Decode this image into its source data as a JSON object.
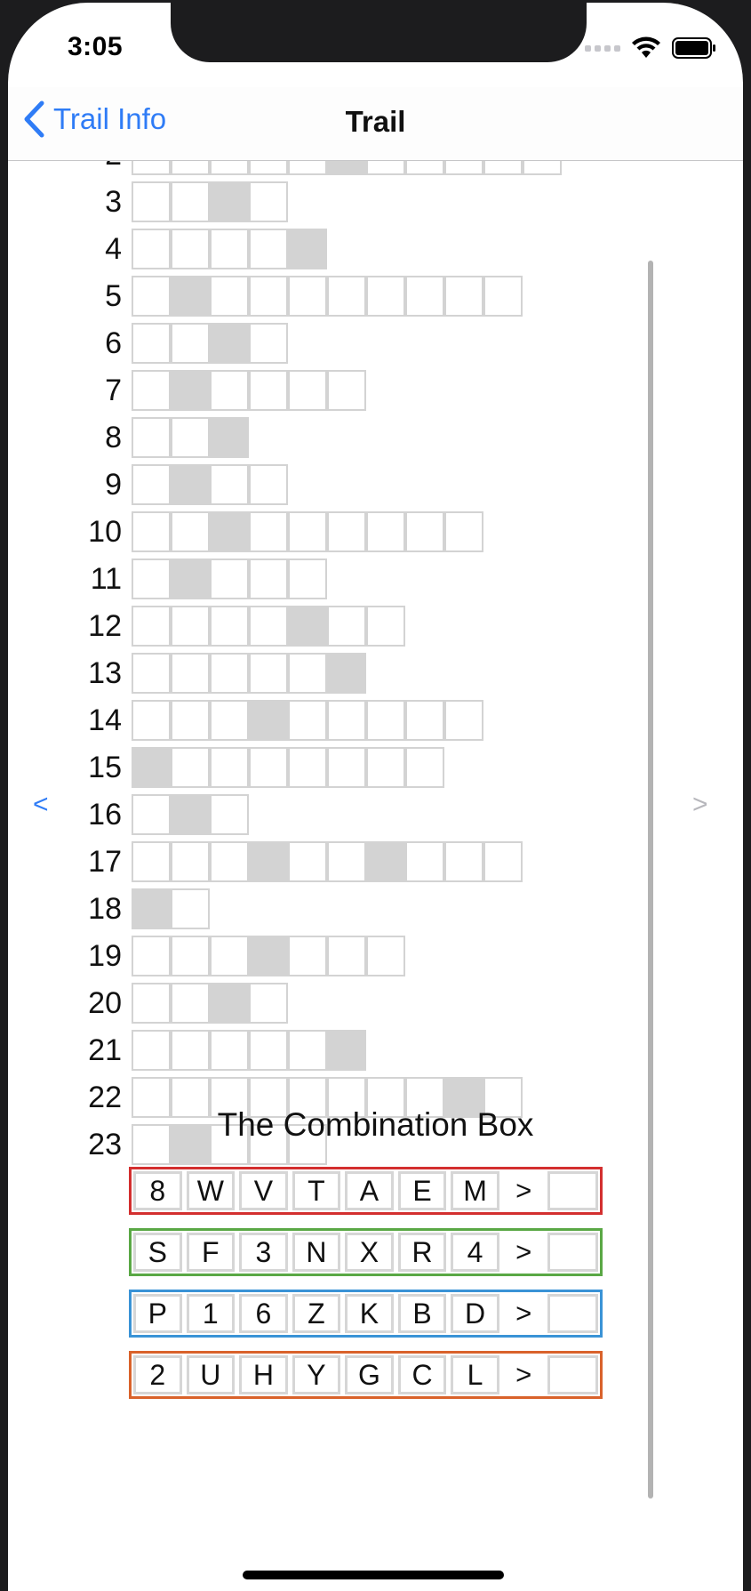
{
  "status": {
    "time": "3:05"
  },
  "nav": {
    "back_label": "Trail Info",
    "title": "Trail"
  },
  "arrows": {
    "left": "<",
    "right": ">"
  },
  "rows": [
    {
      "number": "2",
      "cells": 11,
      "filled": [
        5
      ]
    },
    {
      "number": "3",
      "cells": 4,
      "filled": [
        2
      ]
    },
    {
      "number": "4",
      "cells": 5,
      "filled": [
        4
      ]
    },
    {
      "number": "5",
      "cells": 10,
      "filled": [
        1
      ]
    },
    {
      "number": "6",
      "cells": 4,
      "filled": [
        2
      ]
    },
    {
      "number": "7",
      "cells": 6,
      "filled": [
        1
      ]
    },
    {
      "number": "8",
      "cells": 3,
      "filled": [
        2
      ]
    },
    {
      "number": "9",
      "cells": 4,
      "filled": [
        1
      ]
    },
    {
      "number": "10",
      "cells": 9,
      "filled": [
        2
      ]
    },
    {
      "number": "11",
      "cells": 5,
      "filled": [
        1
      ]
    },
    {
      "number": "12",
      "cells": 7,
      "filled": [
        4
      ]
    },
    {
      "number": "13",
      "cells": 6,
      "filled": [
        5
      ]
    },
    {
      "number": "14",
      "cells": 9,
      "filled": [
        3
      ]
    },
    {
      "number": "15",
      "cells": 8,
      "filled": [
        0
      ]
    },
    {
      "number": "16",
      "cells": 3,
      "filled": [
        1
      ]
    },
    {
      "number": "17",
      "cells": 10,
      "filled": [
        3,
        6
      ]
    },
    {
      "number": "18",
      "cells": 2,
      "filled": [
        0
      ]
    },
    {
      "number": "19",
      "cells": 7,
      "filled": [
        3
      ]
    },
    {
      "number": "20",
      "cells": 4,
      "filled": [
        2
      ]
    },
    {
      "number": "21",
      "cells": 6,
      "filled": [
        5
      ]
    },
    {
      "number": "22",
      "cells": 10,
      "filled": [
        8
      ]
    },
    {
      "number": "23",
      "cells": 5,
      "filled": [
        1
      ]
    }
  ],
  "combination": {
    "title": "The Combination Box",
    "separator": ">",
    "rows": [
      {
        "color": "#d32f2f",
        "letters": [
          "8",
          "W",
          "V",
          "T",
          "A",
          "E",
          "M"
        ]
      },
      {
        "color": "#5aa845",
        "letters": [
          "S",
          "F",
          "3",
          "N",
          "X",
          "R",
          "4"
        ]
      },
      {
        "color": "#3a93d6",
        "letters": [
          "P",
          "1",
          "6",
          "Z",
          "K",
          "B",
          "D"
        ]
      },
      {
        "color": "#d9622b",
        "letters": [
          "2",
          "U",
          "H",
          "Y",
          "G",
          "C",
          "L"
        ]
      }
    ]
  }
}
